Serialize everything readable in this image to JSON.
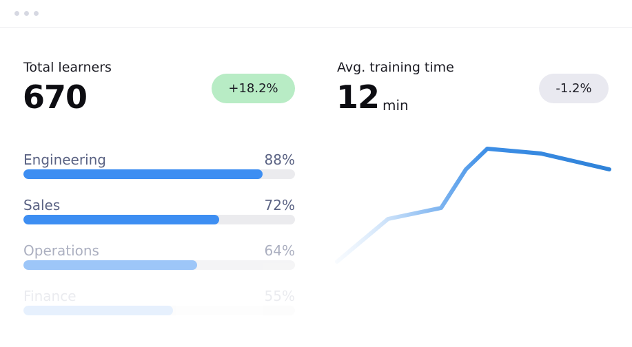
{
  "metrics": [
    {
      "label": "Total learners",
      "value": "670",
      "change": "+18.2%"
    },
    {
      "label": "Avg. training time",
      "value": "12",
      "unit": "min",
      "change": "-1.2%"
    }
  ],
  "departments": [
    {
      "name": "Engineering",
      "percent": 88,
      "percent_label": "88%"
    },
    {
      "name": "Sales",
      "percent": 72,
      "percent_label": "72%"
    },
    {
      "name": "Operations",
      "percent": 64,
      "percent_label": "64%"
    },
    {
      "name": "Finance",
      "percent": 55,
      "percent_label": "55%"
    }
  ]
}
